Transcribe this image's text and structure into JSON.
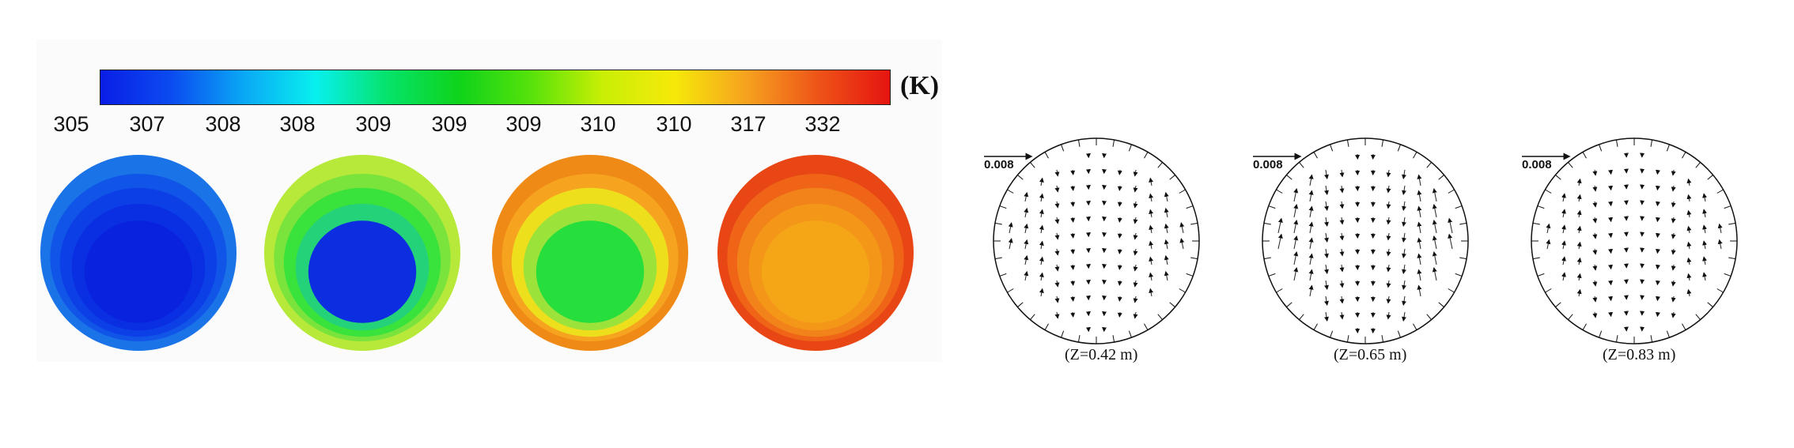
{
  "colorbar": {
    "unit": "(K)",
    "ticks": [
      "305",
      "307",
      "308",
      "308",
      "309",
      "309",
      "309",
      "310",
      "310",
      "317",
      "332"
    ],
    "stops": [
      "#0a1ee6",
      "#0b4cf0",
      "#0aa8f5",
      "#08f0ee",
      "#05e36a",
      "#0fd31a",
      "#56e20a",
      "#c9ef05",
      "#f6e909",
      "#f6a21f",
      "#ee5418",
      "#e51410"
    ]
  },
  "contours": [
    {
      "name": "contour-1",
      "colors": [
        "#1a74e8",
        "#1155e8",
        "#0c3fe6",
        "#0a2ee2",
        "#0822dd"
      ]
    },
    {
      "name": "contour-2",
      "colors": [
        "#b6e93a",
        "#7be43c",
        "#3ae23c",
        "#24d27a",
        "#0c2ee0"
      ]
    },
    {
      "name": "contour-3",
      "colors": [
        "#f08a16",
        "#f6a420",
        "#eedf1d",
        "#9be23a",
        "#26de3c"
      ]
    },
    {
      "name": "contour-4",
      "colors": [
        "#e84614",
        "#ef6417",
        "#f2821a",
        "#f49719",
        "#f5a617"
      ]
    }
  ],
  "vectors": [
    {
      "name": "vector-plot-1",
      "scale": "0.008",
      "label": "(Z=0.42 m)"
    },
    {
      "name": "vector-plot-2",
      "scale": "0.008",
      "label": "(Z=0.65 m)"
    },
    {
      "name": "vector-plot-3",
      "scale": "0.008",
      "label": "(Z=0.83 m)"
    }
  ]
}
